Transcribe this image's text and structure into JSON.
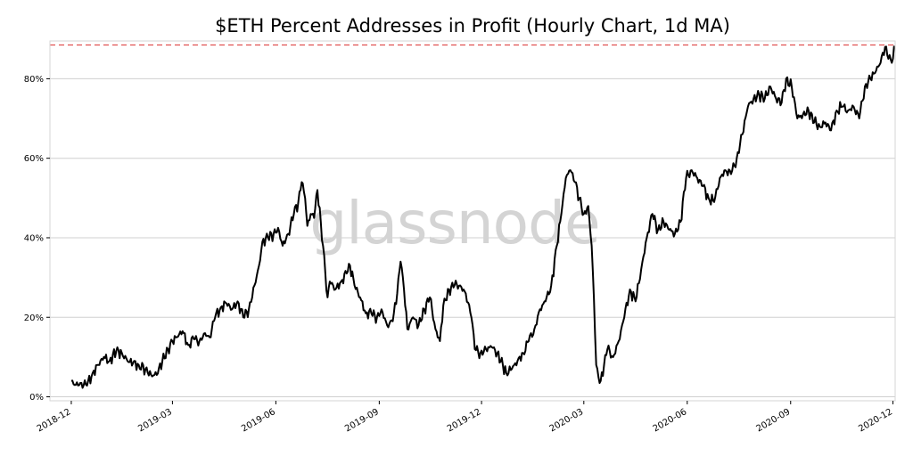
{
  "chart_data": {
    "type": "line",
    "title": "$ETH Percent Addresses in Profit (Hourly Chart, 1d MA)",
    "watermark": "glassnode",
    "xlabel": "",
    "ylabel": "",
    "ylim": [
      -1,
      89.5
    ],
    "yticks": [
      0,
      20,
      40,
      60,
      80
    ],
    "ytick_labels": [
      "0%",
      "20%",
      "40%",
      "60%",
      "80%"
    ],
    "xlim": [
      "2018-11-12",
      "2020-12-03"
    ],
    "xticks": [
      "2018-12-01",
      "2019-03-01",
      "2019-06-01",
      "2019-09-01",
      "2019-12-01",
      "2020-03-01",
      "2020-06-01",
      "2020-09-01",
      "2020-12-01"
    ],
    "xtick_labels": [
      "2018-12",
      "2019-03",
      "2019-06",
      "2019-09",
      "2019-12",
      "2020-03",
      "2020-06",
      "2020-09",
      "2020-12"
    ],
    "grid": "horizontal",
    "reference_line": {
      "y": 88.5,
      "style": "dashed",
      "color": "#e05050"
    },
    "line_color": "#000000",
    "series": [
      {
        "name": "Percent Addresses in Profit",
        "points": [
          [
            "2018-12-01",
            4
          ],
          [
            "2018-12-05",
            3
          ],
          [
            "2018-12-10",
            3.5
          ],
          [
            "2018-12-15",
            2.8
          ],
          [
            "2018-12-20",
            6
          ],
          [
            "2018-12-25",
            8
          ],
          [
            "2018-12-30",
            10
          ],
          [
            "2019-01-04",
            9
          ],
          [
            "2019-01-10",
            11.5
          ],
          [
            "2019-01-15",
            11
          ],
          [
            "2019-01-20",
            9
          ],
          [
            "2019-01-25",
            8.5
          ],
          [
            "2019-01-30",
            8
          ],
          [
            "2019-02-05",
            7
          ],
          [
            "2019-02-10",
            5.5
          ],
          [
            "2019-02-15",
            5.5
          ],
          [
            "2019-02-20",
            9
          ],
          [
            "2019-02-25",
            12
          ],
          [
            "2019-03-01",
            14
          ],
          [
            "2019-03-05",
            15
          ],
          [
            "2019-03-10",
            16.5
          ],
          [
            "2019-03-15",
            13
          ],
          [
            "2019-03-20",
            14.5
          ],
          [
            "2019-03-25",
            14
          ],
          [
            "2019-03-30",
            16
          ],
          [
            "2019-04-03",
            15
          ],
          [
            "2019-04-08",
            20
          ],
          [
            "2019-04-13",
            22.5
          ],
          [
            "2019-04-18",
            23.5
          ],
          [
            "2019-04-23",
            22
          ],
          [
            "2019-04-28",
            24
          ],
          [
            "2019-05-03",
            20
          ],
          [
            "2019-05-08",
            22
          ],
          [
            "2019-05-13",
            28
          ],
          [
            "2019-05-17",
            33
          ],
          [
            "2019-05-20",
            39
          ],
          [
            "2019-05-25",
            40
          ],
          [
            "2019-05-30",
            41
          ],
          [
            "2019-06-03",
            42.5
          ],
          [
            "2019-06-07",
            38
          ],
          [
            "2019-06-12",
            41
          ],
          [
            "2019-06-17",
            46
          ],
          [
            "2019-06-21",
            49
          ],
          [
            "2019-06-24",
            54
          ],
          [
            "2019-06-27",
            50
          ],
          [
            "2019-06-29",
            43
          ],
          [
            "2019-07-02",
            46
          ],
          [
            "2019-07-05",
            45
          ],
          [
            "2019-07-08",
            52
          ],
          [
            "2019-07-11",
            44
          ],
          [
            "2019-07-13",
            38
          ],
          [
            "2019-07-15",
            31
          ],
          [
            "2019-07-17",
            25
          ],
          [
            "2019-07-19",
            29
          ],
          [
            "2019-07-24",
            27
          ],
          [
            "2019-07-29",
            29
          ],
          [
            "2019-08-03",
            31
          ],
          [
            "2019-08-06",
            33
          ],
          [
            "2019-08-10",
            28
          ],
          [
            "2019-08-15",
            25
          ],
          [
            "2019-08-20",
            21
          ],
          [
            "2019-08-25",
            21
          ],
          [
            "2019-08-30",
            20
          ],
          [
            "2019-09-03",
            22
          ],
          [
            "2019-09-08",
            18
          ],
          [
            "2019-09-13",
            19
          ],
          [
            "2019-09-17",
            26
          ],
          [
            "2019-09-20",
            34
          ],
          [
            "2019-09-23",
            27
          ],
          [
            "2019-09-26",
            17
          ],
          [
            "2019-10-01",
            20
          ],
          [
            "2019-10-06",
            18
          ],
          [
            "2019-10-11",
            22
          ],
          [
            "2019-10-16",
            25
          ],
          [
            "2019-10-21",
            17
          ],
          [
            "2019-10-25",
            14
          ],
          [
            "2019-10-28",
            23
          ],
          [
            "2019-11-02",
            27
          ],
          [
            "2019-11-07",
            28
          ],
          [
            "2019-11-12",
            28
          ],
          [
            "2019-11-17",
            26
          ],
          [
            "2019-11-22",
            20
          ],
          [
            "2019-11-25",
            12
          ],
          [
            "2019-11-30",
            11
          ],
          [
            "2019-12-05",
            12
          ],
          [
            "2019-12-10",
            12.5
          ],
          [
            "2019-12-15",
            11
          ],
          [
            "2019-12-20",
            8
          ],
          [
            "2019-12-23",
            6
          ],
          [
            "2019-12-28",
            7
          ],
          [
            "2020-01-02",
            9
          ],
          [
            "2020-01-07",
            11
          ],
          [
            "2020-01-12",
            14
          ],
          [
            "2020-01-17",
            17
          ],
          [
            "2020-01-22",
            22
          ],
          [
            "2020-01-27",
            24
          ],
          [
            "2020-02-01",
            28
          ],
          [
            "2020-02-06",
            38
          ],
          [
            "2020-02-10",
            46
          ],
          [
            "2020-02-14",
            55
          ],
          [
            "2020-02-18",
            57
          ],
          [
            "2020-02-22",
            54
          ],
          [
            "2020-02-26",
            50
          ],
          [
            "2020-03-01",
            46
          ],
          [
            "2020-03-05",
            48
          ],
          [
            "2020-03-08",
            38
          ],
          [
            "2020-03-10",
            25
          ],
          [
            "2020-03-12",
            8
          ],
          [
            "2020-03-14",
            5
          ],
          [
            "2020-03-16",
            4
          ],
          [
            "2020-03-19",
            8
          ],
          [
            "2020-03-22",
            12
          ],
          [
            "2020-03-27",
            10
          ],
          [
            "2020-04-01",
            14
          ],
          [
            "2020-04-06",
            20
          ],
          [
            "2020-04-11",
            27
          ],
          [
            "2020-04-16",
            24
          ],
          [
            "2020-04-21",
            32
          ],
          [
            "2020-04-26",
            40
          ],
          [
            "2020-05-01",
            46
          ],
          [
            "2020-05-06",
            42
          ],
          [
            "2020-05-11",
            44
          ],
          [
            "2020-05-16",
            42
          ],
          [
            "2020-05-21",
            41
          ],
          [
            "2020-05-26",
            44
          ],
          [
            "2020-05-31",
            55
          ],
          [
            "2020-06-05",
            57
          ],
          [
            "2020-06-10",
            55
          ],
          [
            "2020-06-15",
            53
          ],
          [
            "2020-06-20",
            50
          ],
          [
            "2020-06-25",
            49
          ],
          [
            "2020-06-30",
            55
          ],
          [
            "2020-07-05",
            57
          ],
          [
            "2020-07-10",
            56
          ],
          [
            "2020-07-15",
            60
          ],
          [
            "2020-07-20",
            66
          ],
          [
            "2020-07-25",
            73
          ],
          [
            "2020-07-30",
            75
          ],
          [
            "2020-08-04",
            76
          ],
          [
            "2020-08-09",
            75
          ],
          [
            "2020-08-14",
            78
          ],
          [
            "2020-08-19",
            75
          ],
          [
            "2020-08-24",
            74
          ],
          [
            "2020-08-28",
            80
          ],
          [
            "2020-09-02",
            78
          ],
          [
            "2020-09-07",
            70
          ],
          [
            "2020-09-12",
            71
          ],
          [
            "2020-09-17",
            72
          ],
          [
            "2020-09-22",
            69
          ],
          [
            "2020-09-27",
            68
          ],
          [
            "2020-10-02",
            69
          ],
          [
            "2020-10-07",
            67
          ],
          [
            "2020-10-12",
            72
          ],
          [
            "2020-10-17",
            73
          ],
          [
            "2020-10-22",
            72
          ],
          [
            "2020-10-27",
            73
          ],
          [
            "2020-11-01",
            70
          ],
          [
            "2020-11-06",
            78
          ],
          [
            "2020-11-11",
            80
          ],
          [
            "2020-11-16",
            82
          ],
          [
            "2020-11-20",
            84
          ],
          [
            "2020-11-24",
            88
          ],
          [
            "2020-11-27",
            85
          ],
          [
            "2020-11-30",
            84
          ],
          [
            "2020-12-03",
            88
          ]
        ]
      }
    ]
  }
}
